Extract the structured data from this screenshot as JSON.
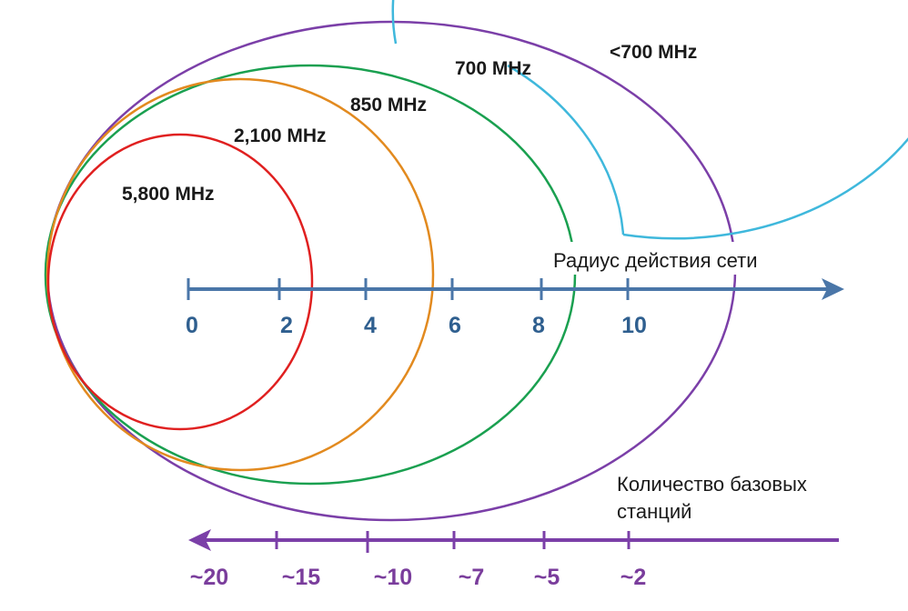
{
  "frequency_bands": [
    {
      "key": "f5800",
      "label": "5,800 MHz",
      "color": "#e02020"
    },
    {
      "key": "f2100",
      "label": "2,100 MHz",
      "color": "#e28a1f"
    },
    {
      "key": "f850",
      "label": "850 MHz",
      "color": "#1aa050"
    },
    {
      "key": "f700",
      "label": "700 MHz",
      "color": "#3fb8dc"
    },
    {
      "key": "flt700",
      "label": "<700 MHz",
      "color": "#7b3fa8"
    }
  ],
  "range_axis": {
    "title": "Радиус действия сети",
    "ticks": [
      "0",
      "2",
      "4",
      "6",
      "8",
      "10"
    ],
    "color": "#4a76a8"
  },
  "stations_axis": {
    "title_line1": "Количество базовых",
    "title_line2": "станций",
    "ticks": [
      "~20",
      "~15",
      "~10",
      "~7",
      "~5",
      "~2"
    ],
    "color": "#7b3fa8"
  }
}
